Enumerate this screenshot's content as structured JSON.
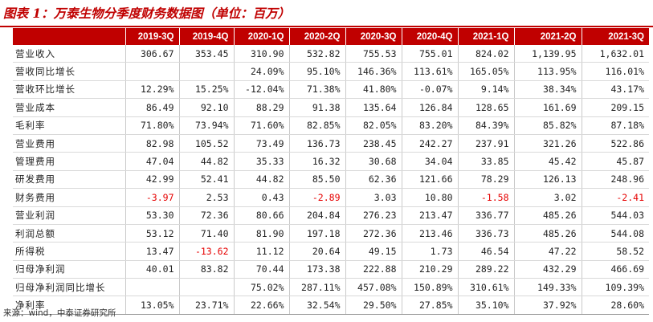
{
  "title": "图表 1：万泰生物分季度财务数据图（单位：百万）",
  "header": {
    "corner": "",
    "columns": [
      "2019-3Q",
      "2019-4Q",
      "2020-1Q",
      "2020-2Q",
      "2020-3Q",
      "2020-4Q",
      "2021-1Q",
      "2021-2Q",
      "2021-3Q"
    ]
  },
  "rows": [
    {
      "label": "营业收入",
      "values": [
        "306.67",
        "353.45",
        "310.90",
        "532.82",
        "755.53",
        "755.01",
        "824.02",
        "1,139.95",
        "1,632.01"
      ]
    },
    {
      "label": "营收同比增长",
      "values": [
        "",
        "",
        "24.09%",
        "95.10%",
        "146.36%",
        "113.61%",
        "165.05%",
        "113.95%",
        "116.01%"
      ]
    },
    {
      "label": "营收环比增长",
      "values": [
        "12.29%",
        "15.25%",
        "-12.04%",
        "71.38%",
        "41.80%",
        "-0.07%",
        "9.14%",
        "38.34%",
        "43.17%"
      ]
    },
    {
      "label": "营业成本",
      "values": [
        "86.49",
        "92.10",
        "88.29",
        "91.38",
        "135.64",
        "126.84",
        "128.65",
        "161.69",
        "209.15"
      ]
    },
    {
      "label": "毛利率",
      "values": [
        "71.80%",
        "73.94%",
        "71.60%",
        "82.85%",
        "82.05%",
        "83.20%",
        "84.39%",
        "85.82%",
        "87.18%"
      ]
    },
    {
      "label": "营业费用",
      "values": [
        "82.98",
        "105.52",
        "73.49",
        "136.73",
        "238.45",
        "242.27",
        "237.91",
        "321.26",
        "522.86"
      ]
    },
    {
      "label": "管理费用",
      "values": [
        "47.04",
        "44.82",
        "35.33",
        "16.32",
        "30.68",
        "34.04",
        "33.85",
        "45.42",
        "45.87"
      ]
    },
    {
      "label": "研发费用",
      "values": [
        "42.99",
        "52.41",
        "44.82",
        "85.50",
        "62.36",
        "121.66",
        "78.29",
        "126.13",
        "248.96"
      ]
    },
    {
      "label": "财务费用",
      "values": [
        "-3.97",
        "2.53",
        "0.43",
        "-2.89",
        "3.03",
        "10.80",
        "-1.58",
        "3.02",
        "-2.41"
      ]
    },
    {
      "label": "营业利润",
      "values": [
        "53.30",
        "72.36",
        "80.66",
        "204.84",
        "276.23",
        "213.47",
        "336.77",
        "485.26",
        "544.03"
      ]
    },
    {
      "label": "利润总额",
      "values": [
        "53.12",
        "71.40",
        "81.90",
        "197.18",
        "272.36",
        "213.46",
        "336.73",
        "485.26",
        "544.08"
      ]
    },
    {
      "label": "所得税",
      "values": [
        "13.47",
        "-13.62",
        "11.12",
        "20.64",
        "49.15",
        "1.73",
        "46.54",
        "47.22",
        "58.52"
      ]
    },
    {
      "label": "归母净利润",
      "values": [
        "40.01",
        "83.82",
        "70.44",
        "173.38",
        "222.88",
        "210.29",
        "289.22",
        "432.29",
        "466.69"
      ]
    },
    {
      "label": "归母净利润同比增长",
      "values": [
        "",
        "",
        "75.02%",
        "287.11%",
        "457.08%",
        "150.89%",
        "310.61%",
        "149.33%",
        "109.39%"
      ]
    },
    {
      "label": "净利率",
      "values": [
        "13.05%",
        "23.71%",
        "22.66%",
        "32.54%",
        "29.50%",
        "27.85%",
        "35.10%",
        "37.92%",
        "28.60%"
      ]
    }
  ],
  "source": "来源：wind，中泰证券研究所",
  "colors": {
    "accent": "#c00000",
    "negative": "#e60000"
  }
}
